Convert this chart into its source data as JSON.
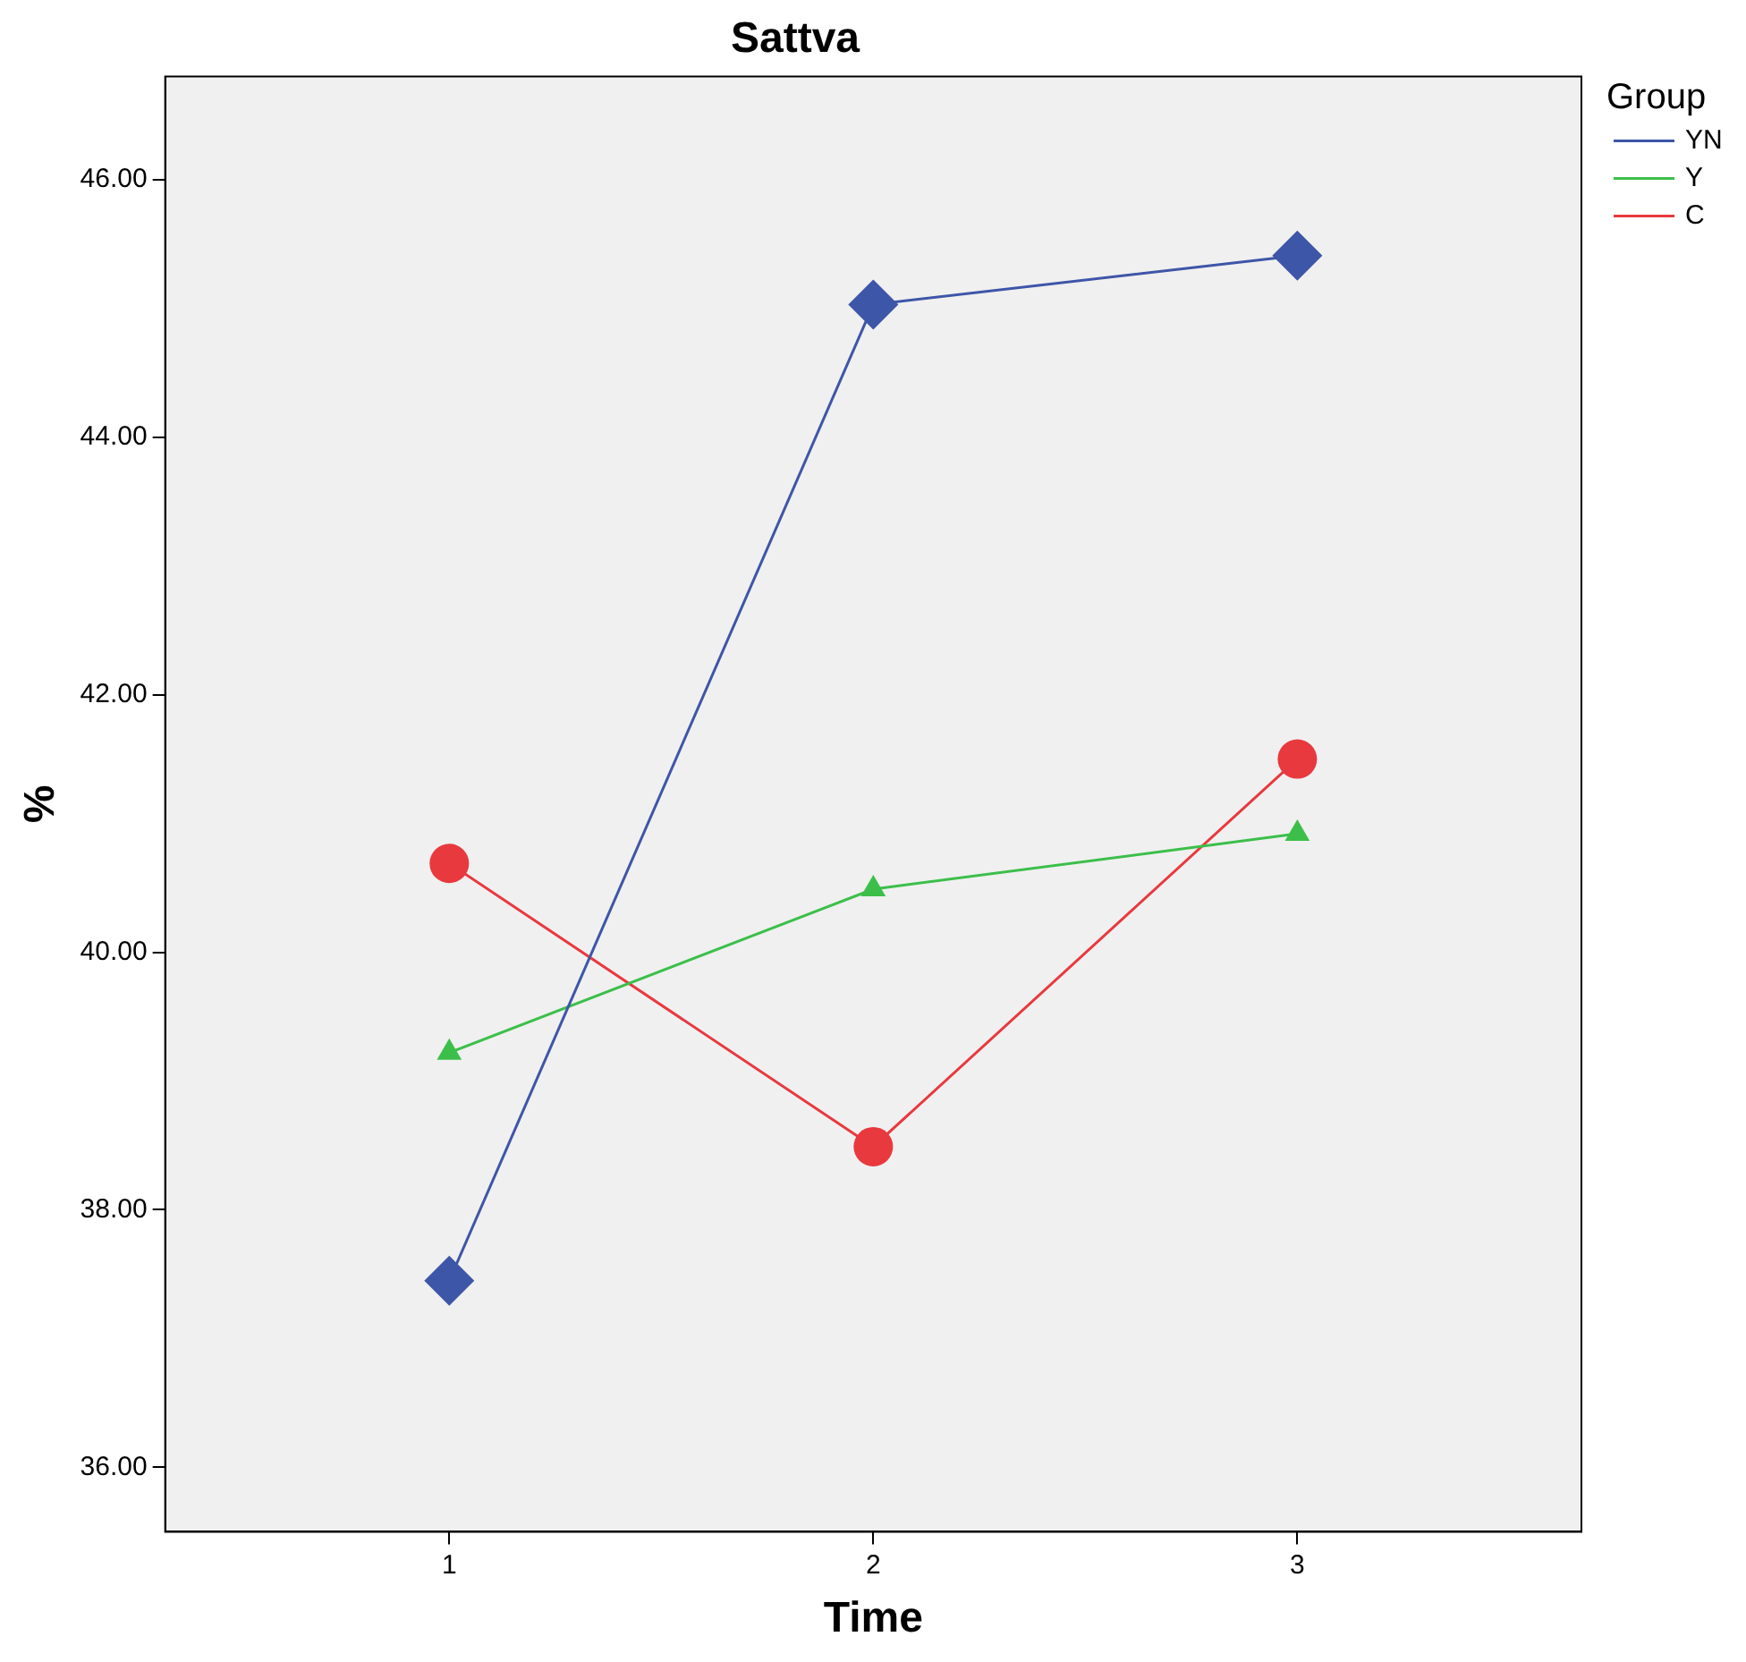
{
  "chart_data": {
    "type": "line",
    "title": "Sattva",
    "xlabel": "Time",
    "ylabel": "%",
    "legend_title": "Group",
    "legend": "top right",
    "grid": false,
    "x": [
      1,
      2,
      3
    ],
    "xlim": [
      0.33,
      3.67
    ],
    "xticks": [
      1,
      2,
      3
    ],
    "ylim": [
      35.5,
      46.8
    ],
    "yticks": [
      {
        "value": 36,
        "label": "36.00"
      },
      {
        "value": 38,
        "label": "38.00"
      },
      {
        "value": 40,
        "label": "40.00"
      },
      {
        "value": 42,
        "label": "42.00"
      },
      {
        "value": 44,
        "label": "44.00"
      },
      {
        "value": 46,
        "label": "46.00"
      }
    ],
    "series": [
      {
        "name": "YN",
        "color": "#3e56a8",
        "marker": "diamond",
        "values": [
          37.45,
          45.03,
          45.41
        ]
      },
      {
        "name": "Y",
        "color": "#3cbf4a",
        "marker": "triangle",
        "values": [
          39.22,
          40.49,
          40.92
        ]
      },
      {
        "name": "C",
        "color": "#e8393f",
        "marker": "circle",
        "values": [
          40.69,
          38.49,
          41.5
        ]
      }
    ]
  }
}
